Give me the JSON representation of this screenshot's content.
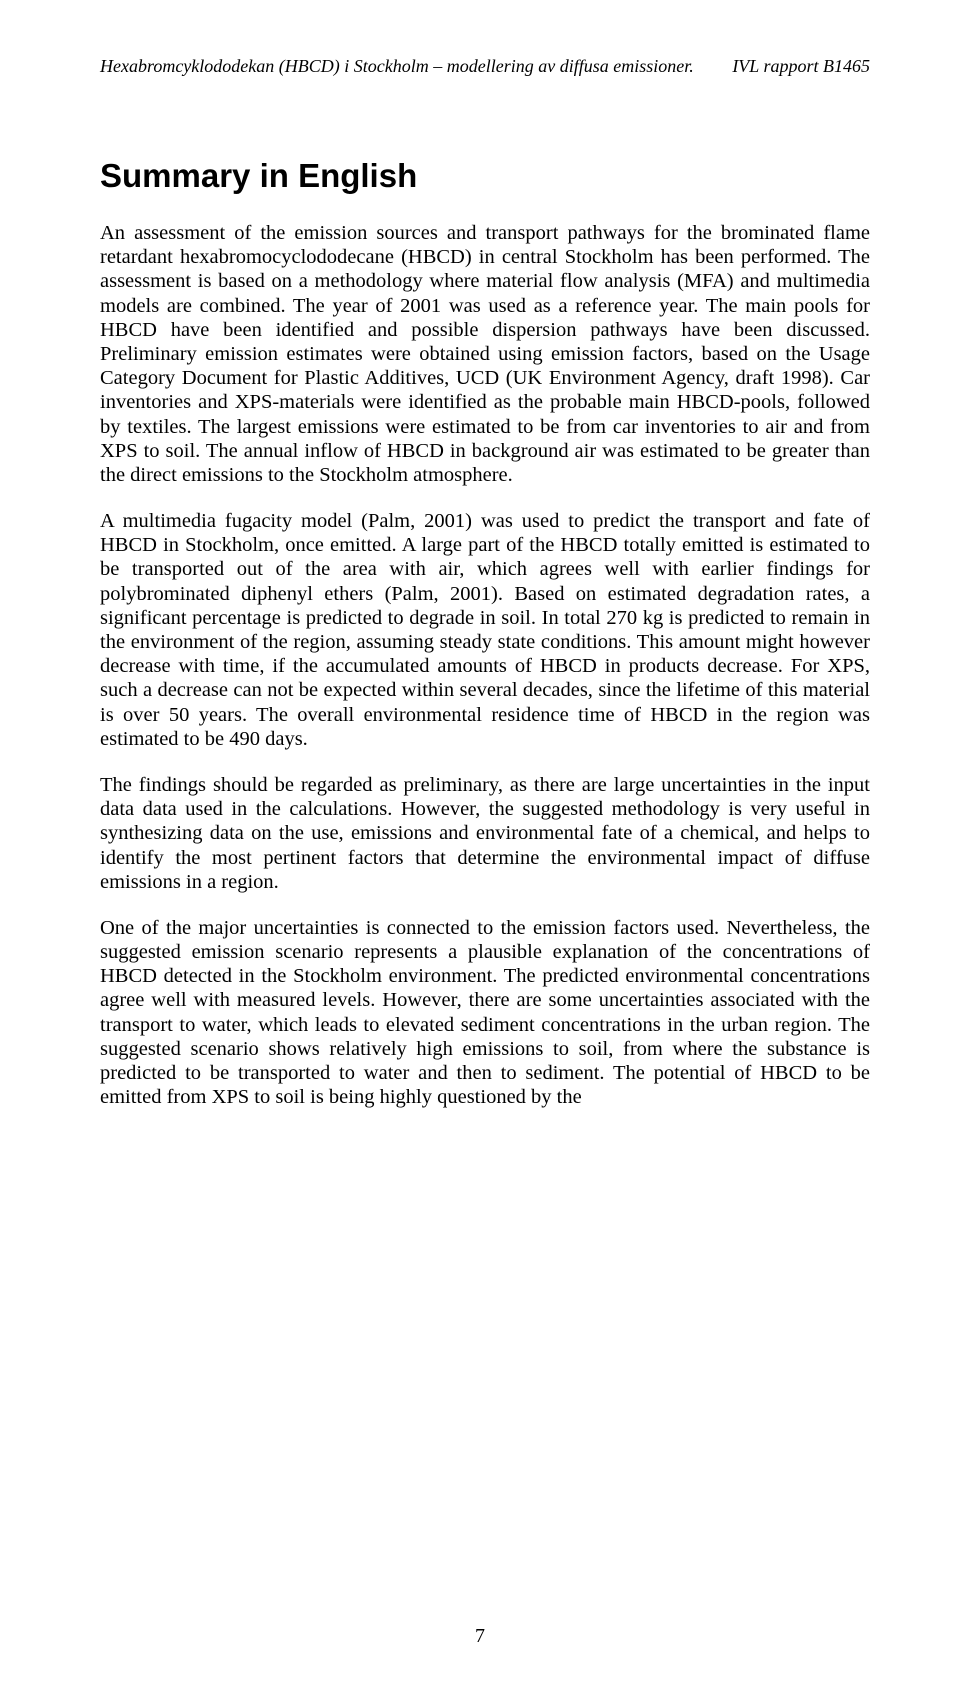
{
  "header": {
    "left": "Hexabromcyklododekan (HBCD) i Stockholm – modellering av diffusa emissioner.",
    "right": "IVL rapport B1465"
  },
  "title": "Summary in English",
  "paragraphs": {
    "p1": "An assessment of the emission sources and transport pathways for the brominated flame retardant hexabromocyclododecane (HBCD) in central Stockholm has been performed. The assessment is based on a methodology where material flow analysis (MFA) and multimedia models are combined. The year of 2001 was used as a reference year. The main pools for HBCD have been identified and possible dispersion pathways have been discussed. Preliminary emission estimates were obtained using emission factors, based on the Usage Category Document for Plastic Additives, UCD (UK Environment Agency, draft 1998). Car inventories and XPS-materials were identified as the probable main HBCD-pools, followed by textiles. The largest emissions were estimated to be from car inventories to air and from XPS to soil. The annual inflow of HBCD in background air was estimated to be greater than the direct emissions to the Stockholm atmosphere.",
    "p2": "A multimedia fugacity model (Palm, 2001) was used to predict the transport and fate of HBCD in Stockholm, once emitted. A large part of the HBCD totally emitted is estimated to be transported out of the area with air, which agrees well with earlier findings for polybrominated diphenyl ethers (Palm, 2001). Based on estimated degradation rates, a significant percentage is predicted to degrade in soil. In total 270 kg is predicted to remain in the environment of the region, assuming steady state conditions. This amount might however decrease with time, if the accumulated amounts of HBCD in products decrease. For XPS, such a decrease can not be expected within several decades, since the lifetime of this material is over 50 years. The overall environmental residence time of HBCD in the region was estimated to be 490 days.",
    "p3": "The findings should be regarded as preliminary, as there are large uncertainties in the input data data used in the calculations. However, the suggested methodology is very useful in synthesizing data on the use, emissions and environmental fate of a chemical, and helps to identify the most pertinent factors that determine the environmental impact of diffuse emissions in a region.",
    "p4": "One of the major uncertainties is connected to the emission factors used. Nevertheless, the suggested emission scenario represents a plausible explanation of the concentrations of HBCD detected in the Stockholm environment. The predicted environmental concentrations agree well with measured levels. However, there are some uncertainties associated with the transport to water, which leads to elevated sediment concentrations in the urban region. The suggested scenario shows relatively high emissions to soil, from where the substance is predicted to be transported to water and then to sediment. The potential of HBCD to be emitted from XPS to soil is being highly questioned by the"
  },
  "pageNumber": "7"
}
